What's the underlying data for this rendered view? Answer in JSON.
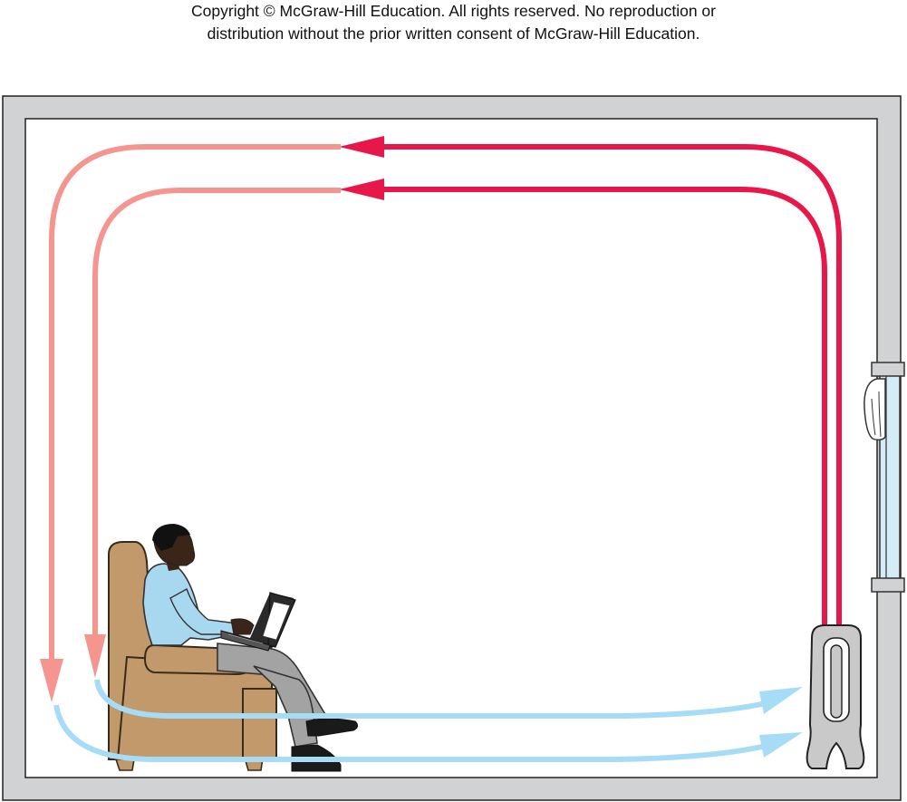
{
  "copyright": {
    "line1": "Copyright © McGraw-Hill Education.  All rights reserved. No reproduction or",
    "line2": "distribution without the prior written consent of McGraw-Hill Education."
  },
  "colors": {
    "wall": "#d1d2d4",
    "hot_air": "#e8174a",
    "cooling_air": "#f4958f",
    "cool_air": "#a6dcf5",
    "chair": "#c1996b",
    "shirt": "#a8d8f0",
    "trousers": "#a3a3a3",
    "radiator": "#c9c9c9",
    "window_glass": "#d3ecf6"
  },
  "icons": [
    "person-icon",
    "laptop-icon",
    "armchair-icon",
    "radiator-icon",
    "window-icon",
    "curtain-icon"
  ]
}
